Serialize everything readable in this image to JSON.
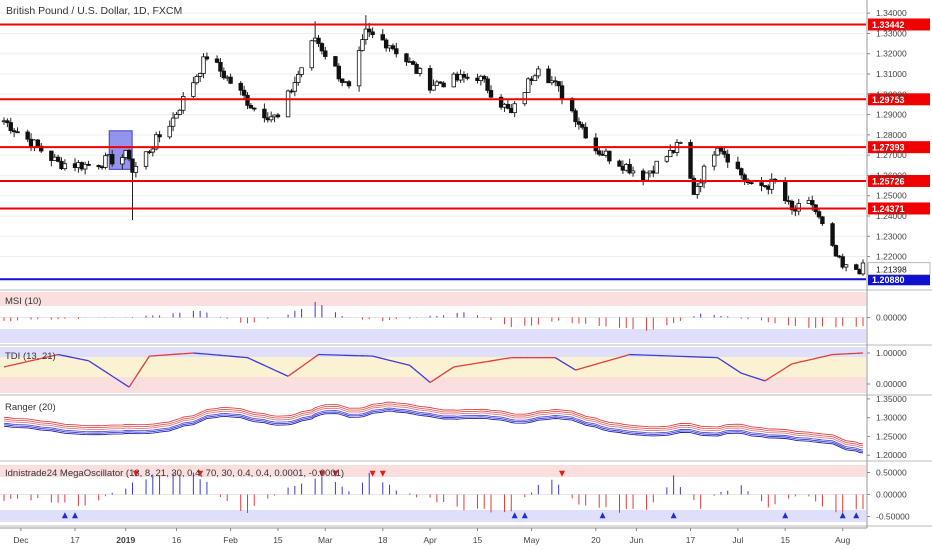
{
  "title": "British Pound / U.S. Dollar, 1D, FXCM",
  "main": {
    "price_ticks": [
      "1.34000",
      "1.33000",
      "1.32000",
      "1.31000",
      "1.30000",
      "1.29000",
      "1.28000",
      "1.27000",
      "1.26000",
      "1.25000",
      "1.24000",
      "1.23000",
      "1.22000"
    ],
    "current_price": "1.21398",
    "current_price_value": 1.21398,
    "levels": [
      {
        "value": 1.33442,
        "label": "1.33442",
        "color": "#f00000"
      },
      {
        "value": 1.29753,
        "label": "1.29753",
        "color": "#f00000"
      },
      {
        "value": 1.27393,
        "label": "1.27393",
        "color": "#f00000"
      },
      {
        "value": 1.25726,
        "label": "1.25726",
        "color": "#f00000"
      },
      {
        "value": 1.24371,
        "label": "1.24371",
        "color": "#f00000"
      },
      {
        "value": 1.2088,
        "label": "1.20880",
        "color": "#1010d0"
      }
    ]
  },
  "panes": {
    "msi": {
      "title": "MSI (10)",
      "ticks": [
        "0.00000"
      ]
    },
    "tdi": {
      "title": "TDI (13, 21)",
      "ticks": [
        "1.00000",
        "0.00000"
      ]
    },
    "ranger": {
      "title": "Ranger (20)",
      "ticks": [
        "1.35000",
        "1.30000",
        "1.25000",
        "1.20000"
      ]
    },
    "mega": {
      "title": "Idnistrade24 MegaOscillator (13, 8, 21, 30, 0.4, 70, 30, 0.4, 0.4, 0.0001, -0.0001)",
      "ticks": [
        "0.50000",
        "0.00000",
        "-0.50000"
      ]
    }
  },
  "x_axis": {
    "labels": [
      {
        "text": "Dec",
        "bold": false
      },
      {
        "text": "17",
        "bold": false
      },
      {
        "text": "2019",
        "bold": true
      },
      {
        "text": "16",
        "bold": false
      },
      {
        "text": "Feb",
        "bold": false
      },
      {
        "text": "15",
        "bold": false
      },
      {
        "text": "Mar",
        "bold": false
      },
      {
        "text": "18",
        "bold": false
      },
      {
        "text": "Apr",
        "bold": false
      },
      {
        "text": "15",
        "bold": false
      },
      {
        "text": "May",
        "bold": false
      },
      {
        "text": "20",
        "bold": false
      },
      {
        "text": "Jun",
        "bold": false
      },
      {
        "text": "17",
        "bold": false
      },
      {
        "text": "Jul",
        "bold": false
      },
      {
        "text": "15",
        "bold": false
      },
      {
        "text": "Aug",
        "bold": false
      }
    ]
  },
  "chart_data": {
    "type": "candlestick",
    "title": "British Pound / U.S. Dollar, 1D, FXCM",
    "ylim": [
      1.2045,
      1.3455
    ],
    "close_anchors": [
      {
        "date": "Nov 26",
        "close": 1.287
      },
      {
        "date": "Dec 12",
        "close": 1.266
      },
      {
        "date": "Dec 21",
        "close": 1.265
      },
      {
        "date": "Jan 02",
        "close": 1.27
      },
      {
        "date": "Jan 03",
        "close": 1.262
      },
      {
        "date": "Jan 15",
        "close": 1.288
      },
      {
        "date": "Jan 25",
        "close": 1.319
      },
      {
        "date": "Feb 08",
        "close": 1.293
      },
      {
        "date": "Feb 15",
        "close": 1.288
      },
      {
        "date": "Feb 26",
        "close": 1.328
      },
      {
        "date": "Mar 08",
        "close": 1.302
      },
      {
        "date": "Mar 13",
        "close": 1.33
      },
      {
        "date": "Mar 20",
        "close": 1.325
      },
      {
        "date": "Apr 01",
        "close": 1.305
      },
      {
        "date": "Apr 15",
        "close": 1.309
      },
      {
        "date": "Apr 25",
        "close": 1.29
      },
      {
        "date": "May 03",
        "close": 1.315
      },
      {
        "date": "May 10",
        "close": 1.3
      },
      {
        "date": "May 20",
        "close": 1.273
      },
      {
        "date": "Jun 03",
        "close": 1.26
      },
      {
        "date": "Jun 14",
        "close": 1.275
      },
      {
        "date": "Jun 18",
        "close": 1.252
      },
      {
        "date": "Jun 25",
        "close": 1.276
      },
      {
        "date": "Jul 05",
        "close": 1.254
      },
      {
        "date": "Jul 12",
        "close": 1.256
      },
      {
        "date": "Jul 17",
        "close": 1.242
      },
      {
        "date": "Jul 23",
        "close": 1.246
      },
      {
        "date": "Jul 29",
        "close": 1.223
      },
      {
        "date": "Aug 01",
        "close": 1.214
      },
      {
        "date": "Aug 07",
        "close": 1.214
      }
    ],
    "spikes": [
      {
        "date": "Jan 03",
        "low": 1.238
      },
      {
        "date": "Mar 13",
        "high": 1.339
      },
      {
        "date": "Feb 26",
        "high": 1.336
      }
    ],
    "highlight": {
      "from": "Dec 28",
      "to": "Jan 02",
      "color": "#7070e8"
    },
    "msi_signal": [
      {
        "date": "Nov 26",
        "v": -0.2
      },
      {
        "date": "Dec 20",
        "v": -0.05
      },
      {
        "date": "Jan 10",
        "v": 0.12
      },
      {
        "date": "Jan 23",
        "v": 0.4
      },
      {
        "date": "Feb 05",
        "v": -0.4
      },
      {
        "date": "Feb 18",
        "v": 0.15
      },
      {
        "date": "Feb 26",
        "v": 0.95
      },
      {
        "date": "Mar 06",
        "v": 0.05
      },
      {
        "date": "Mar 18",
        "v": -0.2
      },
      {
        "date": "Apr 12",
        "v": 0.3
      },
      {
        "date": "Apr 26",
        "v": -0.6
      },
      {
        "date": "May 09",
        "v": -0.2
      },
      {
        "date": "Jun 05",
        "v": -0.8
      },
      {
        "date": "Jun 20",
        "v": 0.25
      },
      {
        "date": "Jul 05",
        "v": -0.1
      },
      {
        "date": "Jul 20",
        "v": -0.6
      },
      {
        "date": "Aug 07",
        "v": -0.5
      }
    ],
    "tdi_signal": [
      {
        "date": "Nov 26",
        "v": 0.55
      },
      {
        "date": "Dec 12",
        "v": 0.95
      },
      {
        "date": "Dec 21",
        "v": 0.75
      },
      {
        "date": "Jan 02",
        "v": -0.1
      },
      {
        "date": "Jan 08",
        "v": 0.9
      },
      {
        "date": "Jan 21",
        "v": 1.0
      },
      {
        "date": "Feb 06",
        "v": 0.85
      },
      {
        "date": "Feb 18",
        "v": 0.25
      },
      {
        "date": "Feb 27",
        "v": 0.95
      },
      {
        "date": "Mar 15",
        "v": 0.9
      },
      {
        "date": "Mar 26",
        "v": 0.6
      },
      {
        "date": "Apr 01",
        "v": 0.05
      },
      {
        "date": "Apr 08",
        "v": 0.55
      },
      {
        "date": "Apr 25",
        "v": 0.85
      },
      {
        "date": "May 08",
        "v": 0.85
      },
      {
        "date": "May 14",
        "v": 0.45
      },
      {
        "date": "May 30",
        "v": 0.95
      },
      {
        "date": "Jun 25",
        "v": 0.85
      },
      {
        "date": "Jul 02",
        "v": 0.35
      },
      {
        "date": "Jul 09",
        "v": 0.1
      },
      {
        "date": "Jul 17",
        "v": 0.65
      },
      {
        "date": "Jul 29",
        "v": 0.95
      },
      {
        "date": "Aug 07",
        "v": 1.0
      }
    ],
    "mega_signal": [
      {
        "date": "Nov 26",
        "v": -0.1
      },
      {
        "date": "Dec 12",
        "v": -0.15
      },
      {
        "date": "Dec 21",
        "v": -0.3
      },
      {
        "date": "Dec 31",
        "v": 0.15
      },
      {
        "date": "Jan 08",
        "v": 0.4
      },
      {
        "date": "Jan 22",
        "v": 0.45
      },
      {
        "date": "Feb 05",
        "v": -0.45
      },
      {
        "date": "Feb 18",
        "v": 0.2
      },
      {
        "date": "Mar 01",
        "v": 0.4
      },
      {
        "date": "Mar 08",
        "v": 0.05
      },
      {
        "date": "Mar 14",
        "v": 0.45
      },
      {
        "date": "Mar 22",
        "v": 0.1
      },
      {
        "date": "Apr 10",
        "v": -0.3
      },
      {
        "date": "Apr 24",
        "v": -0.45
      },
      {
        "date": "May 06",
        "v": 0.45
      },
      {
        "date": "May 16",
        "v": -0.3
      },
      {
        "date": "Jun 03",
        "v": -0.4
      },
      {
        "date": "Jun 12",
        "v": 0.4
      },
      {
        "date": "Jun 20",
        "v": -0.3
      },
      {
        "date": "Jul 01",
        "v": 0.3
      },
      {
        "date": "Jul 10",
        "v": -0.3
      },
      {
        "date": "Jul 19",
        "v": 0.05
      },
      {
        "date": "Jul 31",
        "v": -0.45
      },
      {
        "date": "Aug 07",
        "v": -0.3
      }
    ]
  }
}
